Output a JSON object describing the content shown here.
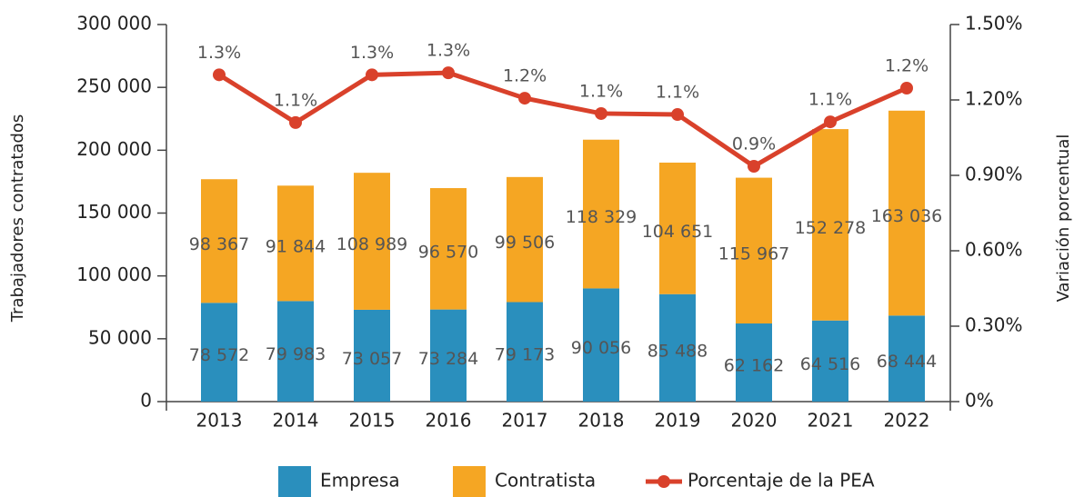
{
  "chart_data": {
    "type": "bar",
    "stacked": true,
    "categories": [
      "2013",
      "2014",
      "2015",
      "2016",
      "2017",
      "2018",
      "2019",
      "2020",
      "2021",
      "2022"
    ],
    "series": [
      {
        "name": "Empresa",
        "color": "#2a8fbd",
        "values": [
          78572,
          79983,
          73057,
          73284,
          79173,
          90056,
          85488,
          62162,
          64516,
          68444
        ],
        "value_labels": [
          "78 572",
          "79 983",
          "73 057",
          "73 284",
          "79 173",
          "90 056",
          "85 488",
          "62 162",
          "64 516",
          "68 444"
        ]
      },
      {
        "name": "Contratista",
        "color": "#f5a623",
        "values": [
          98367,
          91844,
          108989,
          96570,
          99506,
          118329,
          104651,
          115967,
          152278,
          163036
        ],
        "value_labels": [
          "98 367",
          "91 844",
          "108 989",
          "96 570",
          "99 506",
          "118 329",
          "104 651",
          "115 967",
          "152 278",
          "163 036"
        ]
      },
      {
        "name": "Porcentaje de la PEA",
        "color": "#d9412b",
        "type": "line",
        "axis": "y2",
        "values": [
          1.3,
          1.11,
          1.3,
          1.308,
          1.207,
          1.146,
          1.142,
          0.936,
          1.113,
          1.247
        ],
        "value_labels": [
          "1.3%",
          "1.1%",
          "1.3%",
          "1.3%",
          "1.2%",
          "1.1%",
          "1.1%",
          "0.9%",
          "1.1%",
          "1.2%"
        ]
      }
    ],
    "ylabel": "Trabajadores contratados",
    "y2label": "Variación porcentual",
    "ylim": [
      0,
      300000
    ],
    "yticks": [
      0,
      {
        "value": 50000,
        "label": "50 000"
      },
      {
        "value": 100000,
        "label": "100 000"
      },
      {
        "value": 150000,
        "label": "150 000"
      },
      {
        "value": 200000,
        "label": "200 000"
      },
      {
        "value": 250000,
        "label": "250 000"
      },
      {
        "value": 300000,
        "label": "300 000"
      }
    ],
    "y2lim": [
      0,
      1.5
    ],
    "y2ticks": [
      {
        "value": 0,
        "label": "0%"
      },
      {
        "value": 0.3,
        "label": "0.30%"
      },
      {
        "value": 0.6,
        "label": "0.60%"
      },
      {
        "value": 0.9,
        "label": "0.90%"
      },
      {
        "value": 1.2,
        "label": "1.20%"
      },
      {
        "value": 1.5,
        "label": "1.50%"
      }
    ],
    "legend": "bottom"
  }
}
